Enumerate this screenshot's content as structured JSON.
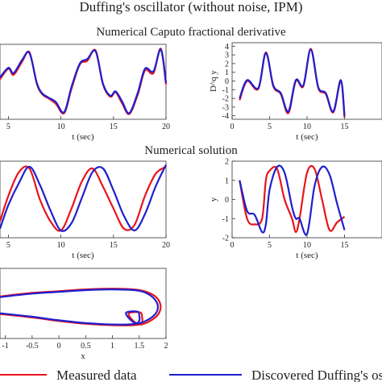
{
  "figure": {
    "title": "Duffing's oscillator (without noise, IPM)",
    "section1_title": "Numerical Caputo fractional derivative",
    "section2_title": "Numerical solution"
  },
  "legend": {
    "measured": "Measured data",
    "discovered": "Discovered Duffing's osc"
  },
  "colors": {
    "measured": "#e8141b",
    "discovered": "#1f1fcf"
  },
  "chart_data": [
    {
      "id": "p1",
      "type": "line",
      "xlabel": "t (sec)",
      "ylabel": "",
      "xlim": [
        4.2,
        20
      ],
      "ylim": [
        -4.3,
        4.3
      ],
      "xticks": [
        5,
        10,
        15,
        20
      ],
      "yticks": [],
      "grid": false,
      "x": [
        4.2,
        5.0,
        5.5,
        6.3,
        7.0,
        7.7,
        8.2,
        8.8,
        9.5,
        10.3,
        11.0,
        11.8,
        12.5,
        13.3,
        14.0,
        14.7,
        15.2,
        15.8,
        16.5,
        17.3,
        18.0,
        18.8,
        19.5,
        20.0
      ],
      "series": [
        {
          "name": "Measured data",
          "values": [
            0.3,
            1.5,
            0.8,
            2.3,
            3.4,
            -0.2,
            -1.4,
            -1.9,
            -2.5,
            -3.6,
            -0.8,
            2.0,
            2.4,
            3.6,
            -0.3,
            -1.7,
            -1.2,
            -2.4,
            -3.7,
            -1.5,
            1.3,
            1.0,
            3.8,
            -0.3
          ]
        },
        {
          "name": "Discovered Duffing's osc",
          "values": [
            0.5,
            1.6,
            1.0,
            2.5,
            3.3,
            -0.1,
            -1.3,
            -1.8,
            -2.3,
            -3.5,
            -0.6,
            2.1,
            2.6,
            3.5,
            -0.2,
            -1.6,
            -1.1,
            -2.2,
            -3.6,
            -1.3,
            1.5,
            1.2,
            3.7,
            -0.1
          ]
        }
      ]
    },
    {
      "id": "p2",
      "type": "line",
      "xlabel": "t (sec)",
      "ylabel": "D^q y",
      "xlim": [
        0,
        20
      ],
      "ylim": [
        -4.4,
        4.4
      ],
      "xticks": [
        0,
        5,
        10,
        15
      ],
      "yticks": [
        -4,
        -3,
        -2,
        -1,
        0,
        1,
        2,
        3,
        4
      ],
      "grid": false,
      "x": [
        1.0,
        2.0,
        3.5,
        4.5,
        5.5,
        6.5,
        7.5,
        8.5,
        9.5,
        10.5,
        11.5,
        12.5,
        13.5,
        14.5,
        15.0
      ],
      "series": [
        {
          "name": "Measured data",
          "values": [
            -2.2,
            0.0,
            -0.9,
            3.3,
            -0.6,
            -1.5,
            -3.7,
            0.0,
            -0.6,
            3.7,
            -0.8,
            -1.5,
            -3.6,
            0.0,
            -4.2
          ]
        },
        {
          "name": "Discovered Duffing's osc",
          "values": [
            -2.0,
            0.1,
            -0.8,
            3.2,
            -0.5,
            -1.4,
            -3.5,
            0.1,
            -0.5,
            3.6,
            -0.7,
            -1.4,
            -3.5,
            0.1,
            -4.0
          ]
        }
      ]
    },
    {
      "id": "p3",
      "type": "line",
      "xlabel": "t (sec)",
      "ylabel": "",
      "xlim": [
        4.2,
        20
      ],
      "ylim": [
        -2.1,
        2.1
      ],
      "xticks": [
        5,
        10,
        15,
        20
      ],
      "yticks": [],
      "grid": false,
      "x": [
        4.2,
        5.0,
        6.0,
        7.0,
        8.0,
        9.0,
        10.0,
        11.0,
        12.0,
        13.0,
        14.0,
        15.0,
        16.0,
        17.0,
        18.0,
        19.0,
        20.0
      ],
      "series": [
        {
          "name": "Measured data",
          "values": [
            -1.2,
            0.2,
            1.5,
            1.7,
            0.0,
            -1.2,
            -1.7,
            -0.5,
            1.0,
            1.7,
            0.7,
            -0.5,
            -1.6,
            -1.4,
            0.2,
            1.4,
            1.8
          ]
        },
        {
          "name": "Discovered Duffing's osc",
          "values": [
            -1.6,
            -0.3,
            0.9,
            1.8,
            0.8,
            -0.6,
            -1.7,
            -1.3,
            0.1,
            1.5,
            1.7,
            0.5,
            -0.9,
            -1.7,
            -0.8,
            0.7,
            1.9
          ]
        }
      ]
    },
    {
      "id": "p4",
      "type": "line",
      "xlabel": "t (sec)",
      "ylabel": "y",
      "xlim": [
        0,
        20
      ],
      "ylim": [
        -2,
        2
      ],
      "xticks": [
        0,
        5,
        10,
        15
      ],
      "yticks": [
        -2,
        -1,
        0,
        1,
        2
      ],
      "grid": false,
      "x": [
        1.0,
        2.0,
        3.0,
        4.0,
        4.5,
        5.0,
        6.0,
        7.0,
        8.0,
        8.5,
        9.0,
        10.0,
        11.0,
        12.0,
        13.0,
        14.0,
        15.0
      ],
      "series": [
        {
          "name": "Measured data",
          "values": [
            1.0,
            -1.0,
            -1.3,
            -1.0,
            1.0,
            1.5,
            1.6,
            0.0,
            -1.0,
            -1.7,
            -1.0,
            1.4,
            1.6,
            0.0,
            -1.6,
            -1.2,
            -0.9
          ]
        },
        {
          "name": "Discovered Duffing's osc",
          "values": [
            1.0,
            -0.6,
            -0.8,
            -1.7,
            -1.3,
            0.5,
            1.7,
            1.4,
            -0.4,
            -1.0,
            -1.0,
            -1.8,
            0.7,
            1.7,
            1.3,
            -0.2,
            -1.6
          ]
        }
      ]
    },
    {
      "id": "p5",
      "type": "line",
      "xlabel": "x",
      "ylabel": "",
      "xlim": [
        -1.1,
        2
      ],
      "ylim": [
        -1,
        1
      ],
      "xticks": [
        -1,
        -0.5,
        0,
        0.5,
        1,
        1.5,
        2
      ],
      "yticks": [],
      "grid": false,
      "series": [
        {
          "name": "Measured data",
          "x": [
            -1.1,
            -0.5,
            0.0,
            0.5,
            1.0,
            1.5,
            1.8,
            1.9,
            1.8,
            1.5,
            1.3,
            1.5,
            1.55,
            1.5,
            1.0,
            0.5,
            0.0,
            -0.5,
            -1.1
          ],
          "values": [
            0.2,
            0.3,
            0.35,
            0.4,
            0.42,
            0.38,
            0.2,
            -0.1,
            -0.4,
            -0.6,
            -0.3,
            -0.25,
            -0.35,
            -0.6,
            -0.62,
            -0.58,
            -0.5,
            -0.4,
            -0.3
          ]
        },
        {
          "name": "Discovered Duffing's osc",
          "x": [
            -1.1,
            -0.5,
            0.0,
            0.5,
            1.0,
            1.5,
            1.75,
            1.85,
            1.75,
            1.45,
            1.25,
            1.45,
            1.5,
            1.45,
            1.0,
            0.5,
            0.0,
            -0.5,
            -1.1
          ],
          "values": [
            0.18,
            0.28,
            0.33,
            0.38,
            0.4,
            0.36,
            0.18,
            -0.1,
            -0.38,
            -0.57,
            -0.28,
            -0.23,
            -0.33,
            -0.57,
            -0.6,
            -0.56,
            -0.48,
            -0.38,
            -0.28
          ]
        }
      ]
    }
  ]
}
